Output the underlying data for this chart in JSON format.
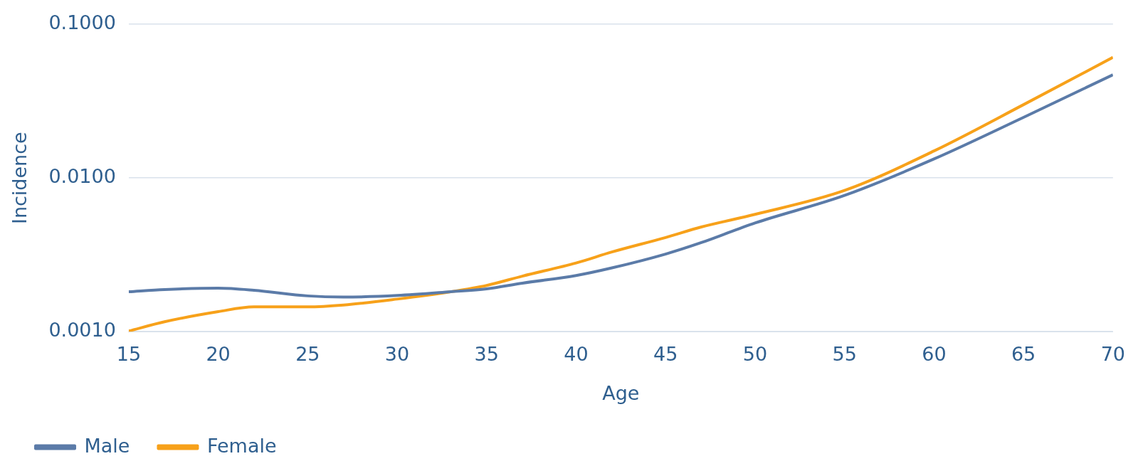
{
  "chart_data": {
    "type": "line",
    "xlabel": "Age",
    "ylabel": "Incidence",
    "log": "y",
    "grid": "y",
    "legend": "bottom",
    "marker": "none",
    "line_style": "solid",
    "x": [
      15,
      17,
      20,
      22,
      25,
      27,
      30,
      33,
      35,
      37,
      40,
      42,
      45,
      47,
      50,
      55,
      60,
      65,
      70
    ],
    "xlim": [
      15,
      70
    ],
    "xticks": [
      15,
      20,
      25,
      30,
      35,
      40,
      45,
      50,
      55,
      60,
      65,
      70
    ],
    "ylim": [
      0.001,
      0.1
    ],
    "yticks": [
      {
        "value": 0.001,
        "label": "0.0010"
      },
      {
        "value": 0.01,
        "label": "0.0100"
      },
      {
        "value": 0.1,
        "label": "0.1000"
      }
    ],
    "series": [
      {
        "name": "Male",
        "color": "#5b7ba8",
        "values": [
          0.00182,
          0.00188,
          0.00192,
          0.00186,
          0.00171,
          0.00168,
          0.00172,
          0.00182,
          0.0019,
          0.00207,
          0.00232,
          0.0026,
          0.0032,
          0.0038,
          0.0051,
          0.0077,
          0.0133,
          0.0248,
          0.047
        ]
      },
      {
        "name": "Female",
        "color": "#f7a11a",
        "values": [
          0.00101,
          0.00116,
          0.00135,
          0.00145,
          0.00145,
          0.00149,
          0.00163,
          0.00182,
          0.002,
          0.0023,
          0.0028,
          0.0033,
          0.0041,
          0.0048,
          0.0058,
          0.0083,
          0.015,
          0.03,
          0.061
        ]
      }
    ]
  }
}
